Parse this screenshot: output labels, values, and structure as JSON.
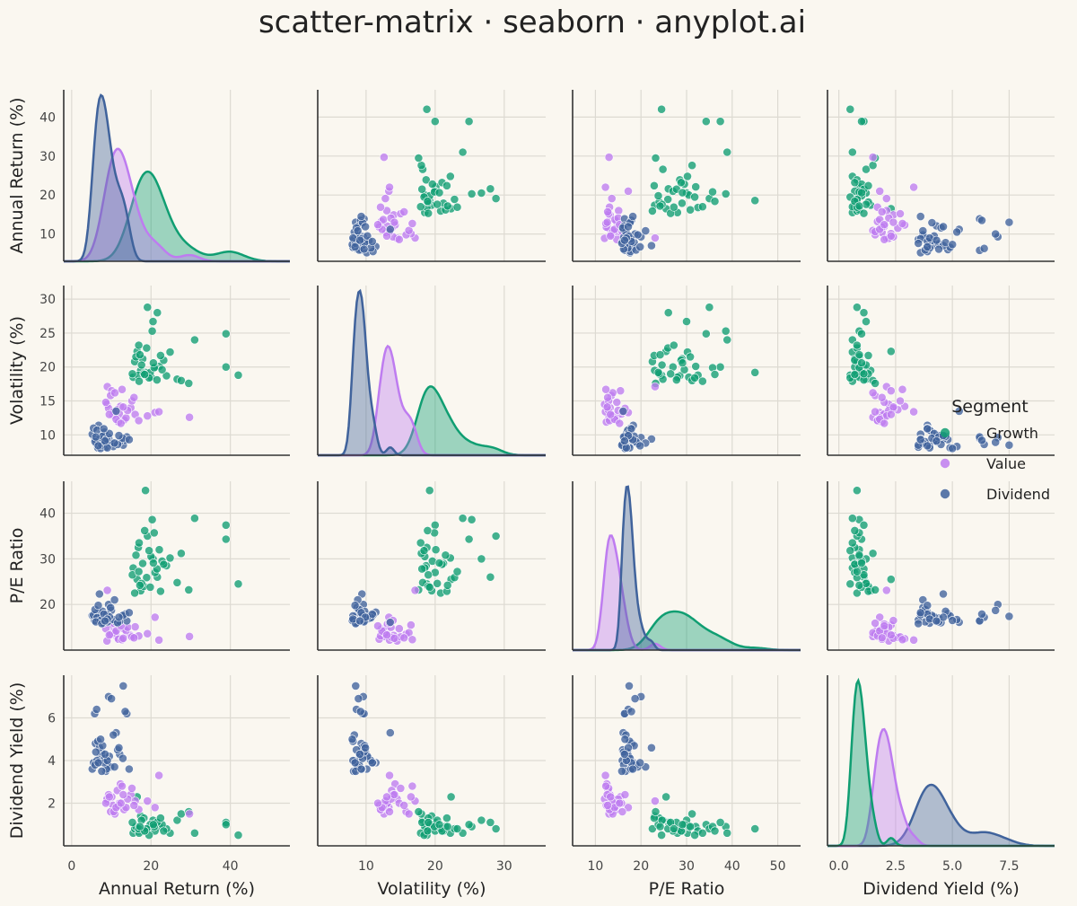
{
  "title": "scatter-matrix · seaborn · anyplot.ai",
  "colors": {
    "background": "#FAF7F0",
    "grid": "#DDDAD2",
    "axis": "#333333",
    "Growth": "#109E72",
    "Value": "#BE7CF0",
    "Dividend": "#40639C"
  },
  "legend": {
    "title": "Segment",
    "placement": "right",
    "items": [
      "Growth",
      "Value",
      "Dividend"
    ]
  },
  "chart_data": {
    "type": "scatter",
    "title": "scatter-matrix · seaborn · anyplot.ai",
    "variables": [
      {
        "key": "ret",
        "label": "Annual Return (%)",
        "ticks": [
          0,
          20,
          40
        ],
        "tick_labels": [
          "0",
          "20",
          "40"
        ],
        "range": [
          -2,
          55
        ],
        "show_xticks": true,
        "show_yticks": true
      },
      {
        "key": "vol",
        "label": "Volatility (%)",
        "ticks": [
          10,
          20,
          30
        ],
        "tick_labels": [
          "10",
          "20",
          "30"
        ],
        "range": [
          3,
          36
        ],
        "show_xticks": true,
        "show_yticks": true
      },
      {
        "key": "pe",
        "label": "P/E Ratio",
        "ticks": [
          10,
          20,
          30,
          40,
          50
        ],
        "tick_labels": [
          "10",
          "20",
          "30",
          "40",
          "50"
        ],
        "range": [
          5,
          55
        ],
        "show_xticks": true,
        "show_yticks": false
      },
      {
        "key": "div",
        "label": "Dividend Yield (%)",
        "ticks": [
          0,
          2.5,
          5,
          7.5
        ],
        "tick_labels": [
          "0.0",
          "2.5",
          "5.0",
          "7.5"
        ],
        "range": [
          -0.5,
          9.5
        ],
        "show_xticks": true,
        "show_yticks": false
      }
    ],
    "row_axes": [
      {
        "label": "Annual Return (%)",
        "ticks": [
          10,
          20,
          30,
          40
        ],
        "tick_labels": [
          "10",
          "20",
          "30",
          "40"
        ],
        "range": [
          3,
          47
        ]
      },
      {
        "label": "Volatility (%)",
        "ticks": [
          10,
          15,
          20,
          25,
          30
        ],
        "tick_labels": [
          "10",
          "15",
          "20",
          "25",
          "30"
        ],
        "range": [
          7,
          32
        ]
      },
      {
        "label": "P/E Ratio",
        "ticks": [
          20,
          30,
          40
        ],
        "tick_labels": [
          "20",
          "30",
          "40"
        ],
        "range": [
          10,
          47
        ]
      },
      {
        "label": "Dividend Yield (%)",
        "ticks": [
          2,
          4,
          6
        ],
        "tick_labels": [
          "2",
          "4",
          "6"
        ],
        "range": [
          0,
          8
        ]
      }
    ],
    "series": [
      {
        "name": "Growth",
        "color": "#109E72",
        "points": [
          {
            "ret": 18.6,
            "vol": 19.2,
            "pe": 45.0,
            "div": 0.8
          },
          {
            "ret": 20.3,
            "vol": 25.3,
            "pe": 38.6,
            "div": 0.9
          },
          {
            "ret": 24.8,
            "vol": 22.2,
            "pe": 30.2,
            "div": 0.6
          },
          {
            "ret": 42.0,
            "vol": 18.8,
            "pe": 24.5,
            "div": 0.5
          },
          {
            "ret": 31.0,
            "vol": 24.0,
            "pe": 38.9,
            "div": 0.6
          },
          {
            "ret": 38.9,
            "vol": 20.0,
            "pe": 37.4,
            "div": 1.1
          },
          {
            "ret": 38.9,
            "vol": 24.9,
            "pe": 34.3,
            "div": 1.0
          },
          {
            "ret": 17.9,
            "vol": 21.2,
            "pe": 29.0,
            "div": 0.7
          },
          {
            "ret": 21.6,
            "vol": 28.0,
            "pe": 26.0,
            "div": 1.1
          },
          {
            "ret": 20.5,
            "vol": 26.7,
            "pe": 30.0,
            "div": 1.2
          },
          {
            "ret": 16.5,
            "vol": 22.3,
            "pe": 25.5,
            "div": 2.3
          },
          {
            "ret": 19.1,
            "vol": 28.8,
            "pe": 35.0,
            "div": 0.8
          },
          {
            "ret": 22.1,
            "vol": 20.1,
            "pe": 32.0,
            "div": 0.9
          },
          {
            "ret": 23.9,
            "vol": 18.7,
            "pe": 28.5,
            "div": 0.8
          },
          {
            "ret": 26.6,
            "vol": 18.2,
            "pe": 24.8,
            "div": 1.2
          },
          {
            "ret": 17.4,
            "vol": 19.5,
            "pe": 23.0,
            "div": 1.4
          },
          {
            "ret": 15.5,
            "vol": 18.5,
            "pe": 28.0,
            "div": 0.6
          },
          {
            "ret": 16.8,
            "vol": 18.8,
            "pe": 32.5,
            "div": 0.7
          },
          {
            "ret": 18.2,
            "vol": 19.0,
            "pe": 24.0,
            "div": 1.3
          },
          {
            "ret": 20.0,
            "vol": 18.5,
            "pe": 30.5,
            "div": 0.9
          },
          {
            "ret": 21.0,
            "vol": 20.0,
            "pe": 27.0,
            "div": 0.7
          },
          {
            "ret": 22.8,
            "vol": 19.6,
            "pe": 29.5,
            "div": 1.0
          },
          {
            "ret": 15.9,
            "vol": 20.8,
            "pe": 22.5,
            "div": 0.8
          },
          {
            "ret": 17.0,
            "vol": 17.9,
            "pe": 33.5,
            "div": 0.6
          },
          {
            "ret": 19.8,
            "vol": 19.2,
            "pe": 23.8,
            "div": 1.0
          },
          {
            "ret": 21.5,
            "vol": 18.1,
            "pe": 27.8,
            "div": 1.1
          },
          {
            "ret": 16.2,
            "vol": 21.5,
            "pe": 30.8,
            "div": 0.9
          },
          {
            "ret": 18.9,
            "vol": 22.8,
            "pe": 25.9,
            "div": 0.8
          },
          {
            "ret": 27.6,
            "vol": 18.0,
            "pe": 31.2,
            "div": 1.5
          },
          {
            "ret": 23.2,
            "vol": 21.0,
            "pe": 28.8,
            "div": 0.7
          },
          {
            "ret": 17.6,
            "vol": 20.3,
            "pe": 24.6,
            "div": 1.2
          },
          {
            "ret": 20.8,
            "vol": 19.9,
            "pe": 35.7,
            "div": 0.9
          },
          {
            "ret": 15.3,
            "vol": 19.0,
            "pe": 26.5,
            "div": 1.1
          },
          {
            "ret": 19.5,
            "vol": 18.4,
            "pe": 31.8,
            "div": 0.5
          },
          {
            "ret": 22.4,
            "vol": 21.7,
            "pe": 22.9,
            "div": 1.3
          },
          {
            "ret": 16.9,
            "vol": 23.2,
            "pe": 27.2,
            "div": 0.8
          },
          {
            "ret": 18.4,
            "vol": 18.9,
            "pe": 36.2,
            "div": 0.7
          },
          {
            "ret": 29.5,
            "vol": 17.6,
            "pe": 23.2,
            "div": 1.6
          },
          {
            "ret": 20.6,
            "vol": 20.6,
            "pe": 29.1,
            "div": 1.0
          },
          {
            "ret": 17.2,
            "vol": 21.8,
            "pe": 24.2,
            "div": 0.9
          }
        ]
      },
      {
        "name": "Value",
        "color": "#BE7CF0",
        "points": [
          {
            "ret": 9.0,
            "vol": 17.1,
            "pe": 23.1,
            "div": 2.1
          },
          {
            "ret": 10.1,
            "vol": 16.5,
            "pe": 15.5,
            "div": 2.3
          },
          {
            "ret": 12.3,
            "vol": 14.2,
            "pe": 12.5,
            "div": 2.9
          },
          {
            "ret": 14.9,
            "vol": 14.0,
            "pe": 13.2,
            "div": 2.4
          },
          {
            "ret": 16.0,
            "vol": 13.0,
            "pe": 15.1,
            "div": 2.1
          },
          {
            "ret": 21.0,
            "vol": 13.3,
            "pe": 17.2,
            "div": 1.8
          },
          {
            "ret": 29.7,
            "vol": 12.6,
            "pe": 13.0,
            "div": 1.5
          },
          {
            "ret": 22.0,
            "vol": 13.4,
            "pe": 12.2,
            "div": 3.3
          },
          {
            "ret": 10.4,
            "vol": 12.9,
            "pe": 14.0,
            "div": 1.9
          },
          {
            "ret": 11.5,
            "vol": 13.7,
            "pe": 12.8,
            "div": 2.6
          },
          {
            "ret": 13.2,
            "vol": 12.2,
            "pe": 14.6,
            "div": 1.7
          },
          {
            "ret": 8.9,
            "vol": 14.5,
            "pe": 12.0,
            "div": 2.2
          },
          {
            "ret": 9.8,
            "vol": 15.8,
            "pe": 13.5,
            "div": 1.6
          },
          {
            "ret": 12.0,
            "vol": 13.1,
            "pe": 15.7,
            "div": 2.0
          },
          {
            "ret": 13.7,
            "vol": 12.5,
            "pe": 14.3,
            "div": 1.8
          },
          {
            "ret": 15.2,
            "vol": 15.0,
            "pe": 12.9,
            "div": 2.7
          },
          {
            "ret": 10.9,
            "vol": 16.2,
            "pe": 13.8,
            "div": 1.5
          },
          {
            "ret": 9.3,
            "vol": 13.9,
            "pe": 16.5,
            "div": 2.4
          },
          {
            "ret": 11.8,
            "vol": 11.9,
            "pe": 12.4,
            "div": 1.9
          },
          {
            "ret": 14.1,
            "vol": 13.6,
            "pe": 15.0,
            "div": 2.2
          },
          {
            "ret": 16.9,
            "vol": 12.1,
            "pe": 13.1,
            "div": 1.7
          },
          {
            "ret": 8.6,
            "vol": 14.8,
            "pe": 14.7,
            "div": 2.0
          },
          {
            "ret": 12.7,
            "vol": 16.7,
            "pe": 12.3,
            "div": 2.8
          },
          {
            "ret": 10.6,
            "vol": 13.4,
            "pe": 15.9,
            "div": 1.6
          },
          {
            "ret": 19.1,
            "vol": 12.8,
            "pe": 13.6,
            "div": 2.1
          },
          {
            "ret": 13.0,
            "vol": 14.1,
            "pe": 12.6,
            "div": 2.4
          },
          {
            "ret": 11.2,
            "vol": 12.3,
            "pe": 14.2,
            "div": 1.8
          },
          {
            "ret": 9.5,
            "vol": 13.0,
            "pe": 13.3,
            "div": 2.3
          },
          {
            "ret": 15.7,
            "vol": 15.5,
            "pe": 12.7,
            "div": 1.9
          },
          {
            "ret": 12.4,
            "vol": 11.7,
            "pe": 15.3,
            "div": 2.0
          }
        ]
      },
      {
        "name": "Dividend",
        "color": "#40639C",
        "points": [
          {
            "ret": 5.8,
            "vol": 9.5,
            "pe": 16.5,
            "div": 6.2
          },
          {
            "ret": 6.3,
            "vol": 8.6,
            "pe": 17.2,
            "div": 6.4
          },
          {
            "ret": 7.2,
            "vol": 9.1,
            "pe": 16.8,
            "div": 4.2
          },
          {
            "ret": 8.0,
            "vol": 8.4,
            "pe": 15.9,
            "div": 4.0
          },
          {
            "ret": 5.2,
            "vol": 10.1,
            "pe": 17.6,
            "div": 3.6
          },
          {
            "ret": 6.8,
            "vol": 11.4,
            "pe": 18.3,
            "div": 3.9
          },
          {
            "ret": 9.1,
            "vol": 8.8,
            "pe": 16.2,
            "div": 3.8
          },
          {
            "ret": 7.5,
            "vol": 9.9,
            "pe": 17.0,
            "div": 4.4
          },
          {
            "ret": 6.0,
            "vol": 9.3,
            "pe": 18.0,
            "div": 4.8
          },
          {
            "ret": 8.6,
            "vol": 8.2,
            "pe": 16.6,
            "div": 3.5
          },
          {
            "ret": 13.0,
            "vol": 8.5,
            "pe": 17.4,
            "div": 7.5
          },
          {
            "ret": 9.3,
            "vol": 9.6,
            "pe": 20.0,
            "div": 7.0
          },
          {
            "ret": 10.0,
            "vol": 8.9,
            "pe": 18.7,
            "div": 6.9
          },
          {
            "ret": 13.9,
            "vol": 9.7,
            "pe": 16.4,
            "div": 6.2
          },
          {
            "ret": 13.5,
            "vol": 9.2,
            "pe": 17.9,
            "div": 6.3
          },
          {
            "ret": 11.2,
            "vol": 13.5,
            "pe": 16.1,
            "div": 5.3
          },
          {
            "ret": 7.0,
            "vol": 9.4,
            "pe": 22.3,
            "div": 4.6
          },
          {
            "ret": 6.6,
            "vol": 8.1,
            "pe": 17.5,
            "div": 4.9
          },
          {
            "ret": 8.3,
            "vol": 10.4,
            "pe": 16.9,
            "div": 4.1
          },
          {
            "ret": 9.8,
            "vol": 8.7,
            "pe": 19.3,
            "div": 3.7
          },
          {
            "ret": 12.1,
            "vol": 9.0,
            "pe": 16.3,
            "div": 4.3
          },
          {
            "ret": 5.5,
            "vol": 11.0,
            "pe": 17.7,
            "div": 3.9
          },
          {
            "ret": 7.8,
            "vol": 9.8,
            "pe": 18.5,
            "div": 4.7
          },
          {
            "ret": 10.5,
            "vol": 8.3,
            "pe": 16.7,
            "div": 5.2
          },
          {
            "ret": 6.4,
            "vol": 10.7,
            "pe": 17.1,
            "div": 4.0
          },
          {
            "ret": 8.8,
            "vol": 9.4,
            "pe": 17.8,
            "div": 3.6
          },
          {
            "ret": 11.6,
            "vol": 8.6,
            "pe": 16.0,
            "div": 4.5
          },
          {
            "ret": 5.9,
            "vol": 9.0,
            "pe": 18.9,
            "div": 3.8
          },
          {
            "ret": 9.5,
            "vol": 10.2,
            "pe": 17.3,
            "div": 4.2
          },
          {
            "ret": 7.3,
            "vol": 8.0,
            "pe": 16.5,
            "div": 5.0
          },
          {
            "ret": 12.9,
            "vol": 9.5,
            "pe": 17.6,
            "div": 4.1
          },
          {
            "ret": 10.8,
            "vol": 8.8,
            "pe": 21.0,
            "div": 3.7
          },
          {
            "ret": 6.1,
            "vol": 9.7,
            "pe": 16.2,
            "div": 4.4
          },
          {
            "ret": 8.1,
            "vol": 10.9,
            "pe": 17.9,
            "div": 3.9
          },
          {
            "ret": 7.6,
            "vol": 8.5,
            "pe": 15.8,
            "div": 3.5
          },
          {
            "ret": 14.5,
            "vol": 9.3,
            "pe": 18.2,
            "div": 3.6
          },
          {
            "ret": 9.0,
            "vol": 8.1,
            "pe": 16.8,
            "div": 4.0
          },
          {
            "ret": 11.9,
            "vol": 9.9,
            "pe": 17.2,
            "div": 4.6
          },
          {
            "ret": 6.7,
            "vol": 8.4,
            "pe": 19.8,
            "div": 3.9
          },
          {
            "ret": 8.4,
            "vol": 9.1,
            "pe": 16.4,
            "div": 4.3
          }
        ]
      }
    ],
    "diagonal": "kde",
    "grid": true
  }
}
